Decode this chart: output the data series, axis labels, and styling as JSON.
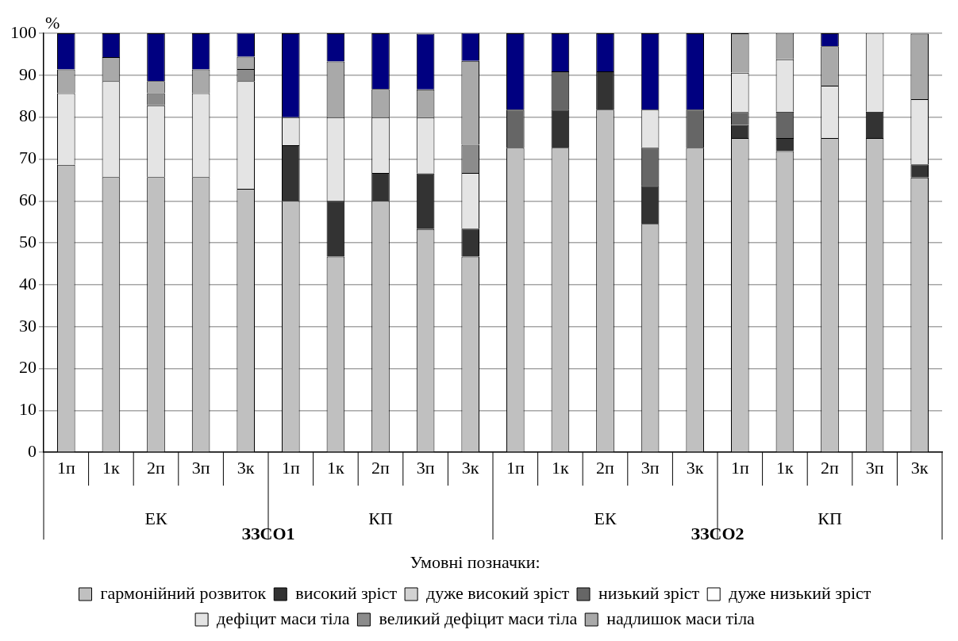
{
  "chart_data": {
    "type": "bar",
    "stacked": true,
    "ylabel": "%",
    "legend_title": "Умовні позначки:",
    "legend": "bottom",
    "grid": "y",
    "categories": [
      "1п",
      "1к",
      "2п",
      "3п",
      "3к",
      "1п",
      "1к",
      "2п",
      "3п",
      "3к",
      "1п",
      "1к",
      "2п",
      "3п",
      "3к",
      "1п",
      "1к",
      "2п",
      "3п",
      "3к"
    ],
    "annotations": [
      "ЕК",
      "ЗЗСО1",
      "КП",
      "ЕК",
      "ЗЗСО2",
      "КП"
    ],
    "ylim": [
      0,
      100
    ],
    "yticks": [
      0,
      10,
      20,
      30,
      40,
      50,
      60,
      70,
      80,
      90,
      {
        "value": 100,
        "label": "100"
      }
    ],
    "series": [
      {
        "name": "гармонійний розвиток",
        "color": "#c0c0c0",
        "values": [
          68.6,
          65.7,
          65.7,
          65.7,
          62.9,
          60,
          46.7,
          60,
          53.3,
          46.7,
          72.7,
          72.7,
          81.8,
          54.5,
          72.7,
          75,
          71.9,
          75,
          75,
          65.6
        ]
      },
      {
        "name": "високий зріст",
        "color": "#333333",
        "values": [
          0,
          0,
          0,
          0,
          0,
          13.3,
          13.3,
          6.7,
          13.3,
          6.7,
          0,
          9.1,
          9.1,
          9.1,
          0,
          3.1,
          3.1,
          0,
          6.3,
          3.1
        ]
      },
      {
        "name": "дуже високий зріст",
        "color": "#d2d2d2",
        "values": [
          0,
          0,
          0,
          0,
          0,
          0,
          0,
          0,
          0,
          0,
          0,
          0,
          0,
          0,
          0,
          0,
          0,
          0,
          0,
          0
        ]
      },
      {
        "name": "низький зріст",
        "color": "#666666",
        "values": [
          0,
          0,
          0,
          0,
          0,
          0,
          0,
          0,
          0,
          0,
          9.1,
          9.1,
          0,
          9.1,
          9.1,
          3.1,
          6.3,
          0,
          0,
          0
        ]
      },
      {
        "name": "дуже низький зріст",
        "color": "#ffffff",
        "values": [
          0,
          0,
          0,
          0,
          0,
          0,
          0,
          0,
          0,
          0,
          0,
          0,
          0,
          0,
          0,
          0,
          0,
          0,
          0,
          0
        ]
      },
      {
        "name": "дефіцит маси тіла",
        "color": "#e4e4e4",
        "values": [
          17.1,
          22.9,
          17.1,
          20,
          25.7,
          6.7,
          20,
          13.3,
          13.3,
          13.3,
          0,
          0,
          0,
          9.1,
          0,
          9.4,
          12.5,
          12.5,
          18.8,
          15.6
        ]
      },
      {
        "name": "великий дефіцит маси тіла",
        "color": "#8c8c8c",
        "values": [
          0,
          0,
          2.9,
          0,
          2.9,
          0,
          0,
          0,
          0,
          6.7,
          0,
          0,
          0,
          0,
          0,
          0,
          0,
          0,
          0,
          0
        ]
      },
      {
        "name": "надлишок маси тіла",
        "color": "#a9a9a9",
        "values": [
          5.7,
          5.7,
          2.9,
          5.7,
          2.9,
          0,
          13.3,
          6.7,
          6.7,
          20,
          0,
          0,
          0,
          0,
          0,
          9.4,
          6.3,
          9.4,
          0,
          15.6
        ]
      },
      {
        "color": "#000080",
        "values": [
          8.6,
          5.7,
          11.4,
          8.6,
          5.7,
          20,
          6.7,
          13.3,
          13.3,
          6.7,
          18.2,
          9.1,
          9.1,
          18.2,
          18.2,
          0,
          0,
          3.1,
          0,
          0
        ]
      }
    ]
  }
}
